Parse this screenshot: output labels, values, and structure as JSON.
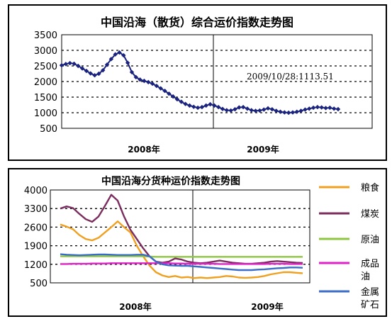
{
  "chart_data": [
    {
      "type": "line",
      "title": "中国沿海（散货）综合运价指数走势图",
      "yticks": [
        "3500",
        "3000",
        "2500",
        "2000",
        "1500",
        "1000",
        "500"
      ],
      "ylim": [
        500,
        3500
      ],
      "xlabels": [
        "2008年",
        "2009年"
      ],
      "grid": "horizontal dotted",
      "annotation": "2009/10/28:1113.51",
      "series": [
        {
          "color": "#1a237e",
          "marker": "diamond",
          "values": [
            2520,
            2560,
            2590,
            2570,
            2500,
            2420,
            2340,
            2260,
            2200,
            2250,
            2360,
            2540,
            2720,
            2870,
            2930,
            2840,
            2600,
            2300,
            2140,
            2060,
            2020,
            1980,
            1930,
            1860,
            1780,
            1700,
            1610,
            1520,
            1430,
            1350,
            1280,
            1230,
            1190,
            1160,
            1180,
            1230,
            1270,
            1230,
            1180,
            1120,
            1080,
            1070,
            1110,
            1170,
            1180,
            1130,
            1080,
            1060,
            1070,
            1100,
            1140,
            1110,
            1060,
            1030,
            1010,
            1000,
            1010,
            1030,
            1060,
            1100,
            1130,
            1160,
            1180,
            1170,
            1150,
            1160,
            1130,
            1113.51
          ]
        }
      ]
    },
    {
      "type": "line",
      "title": "中国沿海分货种运价指数走势图",
      "yticks": [
        "4000",
        "3300",
        "2600",
        "1900",
        "1200",
        "500"
      ],
      "ylim": [
        500,
        4000
      ],
      "xlabels": [
        "2008年",
        "2009年"
      ],
      "grid": "horizontal dotted",
      "legend": "right",
      "series": [
        {
          "name": "粮食",
          "color": "#f0a020",
          "values": [
            2700,
            2620,
            2520,
            2300,
            2150,
            2100,
            2200,
            2400,
            2600,
            2820,
            2600,
            2400,
            1900,
            1500,
            1150,
            900,
            780,
            720,
            760,
            700,
            720,
            680,
            700,
            680,
            700,
            720,
            760,
            740,
            700,
            690,
            700,
            720,
            760,
            820,
            860,
            900,
            900,
            880,
            860
          ]
        },
        {
          "name": "煤炭",
          "color": "#7b2d5e",
          "values": [
            3300,
            3380,
            3320,
            3100,
            2900,
            2800,
            3000,
            3400,
            3820,
            3600,
            3000,
            2500,
            2150,
            1800,
            1500,
            1300,
            1260,
            1300,
            1420,
            1380,
            1300,
            1260,
            1240,
            1260,
            1300,
            1340,
            1300,
            1260,
            1240,
            1220,
            1220,
            1240,
            1260,
            1300,
            1320,
            1300,
            1280,
            1260,
            1250
          ]
        },
        {
          "name": "原油",
          "color": "#8dc63f",
          "values": [
            1500,
            1500,
            1500,
            1500,
            1500,
            1500,
            1500,
            1500,
            1500,
            1500,
            1500,
            1500,
            1500,
            1500,
            1490,
            1480,
            1480,
            1480,
            1480,
            1480,
            1480,
            1480,
            1480,
            1480,
            1480,
            1480,
            1480,
            1480,
            1480,
            1480,
            1480,
            1480,
            1480,
            1480,
            1480,
            1480,
            1480,
            1480,
            1480
          ]
        },
        {
          "name": "成品油",
          "color": "#e020c8",
          "values": [
            1210,
            1210,
            1220,
            1220,
            1220,
            1230,
            1230,
            1230,
            1240,
            1240,
            1240,
            1240,
            1240,
            1240,
            1240,
            1240,
            1240,
            1240,
            1230,
            1230,
            1220,
            1220,
            1220,
            1220,
            1220,
            1210,
            1210,
            1210,
            1210,
            1210,
            1210,
            1210,
            1210,
            1220,
            1220,
            1220,
            1210,
            1210,
            1210
          ]
        },
        {
          "name": "金属矿石",
          "color": "#3a6cc8",
          "values": [
            1580,
            1560,
            1550,
            1540,
            1550,
            1560,
            1570,
            1570,
            1560,
            1550,
            1550,
            1550,
            1560,
            1560,
            1500,
            1300,
            1200,
            1160,
            1150,
            1140,
            1140,
            1120,
            1100,
            1080,
            1060,
            1040,
            1020,
            1000,
            980,
            980,
            980,
            1000,
            1010,
            1030,
            1050,
            1060,
            1080,
            1080,
            1070
          ]
        }
      ]
    }
  ]
}
